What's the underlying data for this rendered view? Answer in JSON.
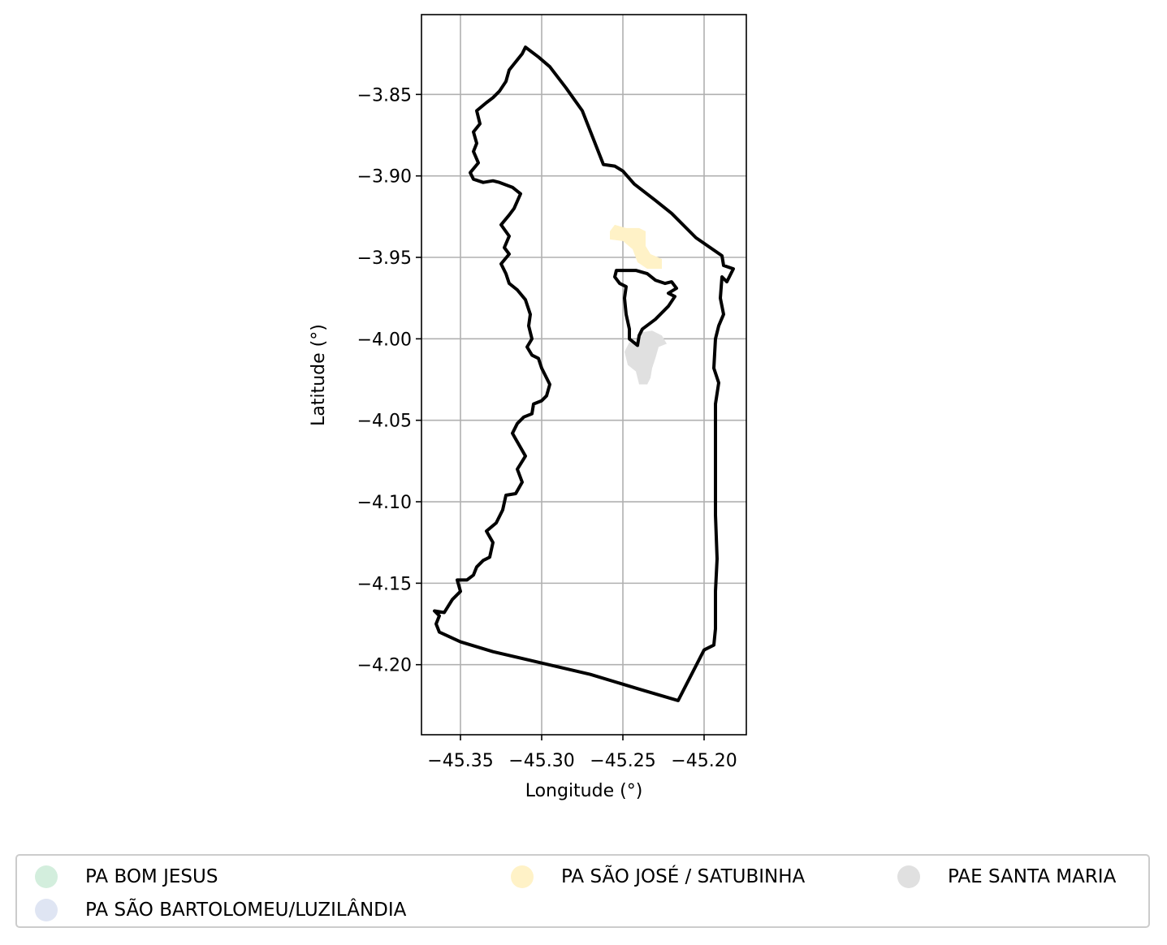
{
  "map": {
    "xlabel": "Longitude (°)",
    "ylabel": "Latitude (°)",
    "xlim": [
      -45.374,
      -45.174
    ],
    "ylim": [
      -4.243,
      -3.801
    ],
    "xticks": [
      -45.35,
      -45.3,
      -45.25,
      -45.2
    ],
    "xtick_labels": [
      "−45.35",
      "−45.30",
      "−45.25",
      "−45.20"
    ],
    "yticks": [
      -3.85,
      -3.9,
      -3.95,
      -4.0,
      -4.05,
      -4.1,
      -4.15,
      -4.2
    ],
    "ytick_labels": [
      "−3.85",
      "−3.90",
      "−3.95",
      "−4.00",
      "−4.05",
      "−4.10",
      "−4.15",
      "−4.20"
    ],
    "grid": true,
    "boundary_color": "#000000",
    "boundary": [
      [
        -45.31,
        -3.821
      ],
      [
        -45.302,
        -3.827
      ],
      [
        -45.295,
        -3.833
      ],
      [
        -45.285,
        -3.846
      ],
      [
        -45.275,
        -3.86
      ],
      [
        -45.262,
        -3.893
      ],
      [
        -45.255,
        -3.894
      ],
      [
        -45.25,
        -3.897
      ],
      [
        -45.243,
        -3.905
      ],
      [
        -45.23,
        -3.915
      ],
      [
        -45.22,
        -3.923
      ],
      [
        -45.205,
        -3.938
      ],
      [
        -45.189,
        -3.949
      ],
      [
        -45.188,
        -3.955
      ],
      [
        -45.182,
        -3.957
      ],
      [
        -45.186,
        -3.965
      ],
      [
        -45.189,
        -3.962
      ],
      [
        -45.19,
        -3.975
      ],
      [
        -45.188,
        -3.985
      ],
      [
        -45.191,
        -3.992
      ],
      [
        -45.193,
        -4.0
      ],
      [
        -45.194,
        -4.018
      ],
      [
        -45.191,
        -4.027
      ],
      [
        -45.193,
        -4.04
      ],
      [
        -45.193,
        -4.09
      ],
      [
        -45.193,
        -4.108
      ],
      [
        -45.192,
        -4.135
      ],
      [
        -45.193,
        -4.155
      ],
      [
        -45.193,
        -4.178
      ],
      [
        -45.194,
        -4.188
      ],
      [
        -45.2,
        -4.191
      ],
      [
        -45.216,
        -4.222
      ],
      [
        -45.24,
        -4.215
      ],
      [
        -45.27,
        -4.206
      ],
      [
        -45.3,
        -4.199
      ],
      [
        -45.33,
        -4.192
      ],
      [
        -45.35,
        -4.186
      ],
      [
        -45.363,
        -4.18
      ],
      [
        -45.365,
        -4.175
      ],
      [
        -45.363,
        -4.17
      ],
      [
        -45.366,
        -4.167
      ],
      [
        -45.36,
        -4.168
      ],
      [
        -45.355,
        -4.16
      ],
      [
        -45.35,
        -4.155
      ],
      [
        -45.352,
        -4.148
      ],
      [
        -45.346,
        -4.148
      ],
      [
        -45.342,
        -4.145
      ],
      [
        -45.34,
        -4.14
      ],
      [
        -45.336,
        -4.136
      ],
      [
        -45.332,
        -4.134
      ],
      [
        -45.33,
        -4.125
      ],
      [
        -45.334,
        -4.118
      ],
      [
        -45.328,
        -4.113
      ],
      [
        -45.324,
        -4.105
      ],
      [
        -45.322,
        -4.096
      ],
      [
        -45.316,
        -4.095
      ],
      [
        -45.312,
        -4.088
      ],
      [
        -45.315,
        -4.08
      ],
      [
        -45.31,
        -4.072
      ],
      [
        -45.314,
        -4.065
      ],
      [
        -45.318,
        -4.058
      ],
      [
        -45.315,
        -4.052
      ],
      [
        -45.311,
        -4.048
      ],
      [
        -45.306,
        -4.046
      ],
      [
        -45.305,
        -4.04
      ],
      [
        -45.3,
        -4.038
      ],
      [
        -45.297,
        -4.035
      ],
      [
        -45.295,
        -4.028
      ],
      [
        -45.298,
        -4.022
      ],
      [
        -45.3,
        -4.018
      ],
      [
        -45.302,
        -4.012
      ],
      [
        -45.306,
        -4.01
      ],
      [
        -45.309,
        -4.005
      ],
      [
        -45.306,
        -4.0
      ],
      [
        -45.308,
        -3.992
      ],
      [
        -45.307,
        -3.985
      ],
      [
        -45.31,
        -3.976
      ],
      [
        -45.315,
        -3.97
      ],
      [
        -45.32,
        -3.966
      ],
      [
        -45.322,
        -3.96
      ],
      [
        -45.325,
        -3.954
      ],
      [
        -45.32,
        -3.948
      ],
      [
        -45.323,
        -3.944
      ],
      [
        -45.32,
        -3.937
      ],
      [
        -45.325,
        -3.93
      ],
      [
        -45.32,
        -3.924
      ],
      [
        -45.317,
        -3.92
      ],
      [
        -45.313,
        -3.911
      ],
      [
        -45.318,
        -3.907
      ],
      [
        -45.326,
        -3.904
      ],
      [
        -45.33,
        -3.903
      ],
      [
        -45.336,
        -3.904
      ],
      [
        -45.342,
        -3.902
      ],
      [
        -45.344,
        -3.898
      ],
      [
        -45.339,
        -3.892
      ],
      [
        -45.342,
        -3.885
      ],
      [
        -45.34,
        -3.88
      ],
      [
        -45.342,
        -3.873
      ],
      [
        -45.338,
        -3.868
      ],
      [
        -45.34,
        -3.86
      ],
      [
        -45.334,
        -3.855
      ],
      [
        -45.33,
        -3.852
      ],
      [
        -45.326,
        -3.848
      ],
      [
        -45.322,
        -3.842
      ],
      [
        -45.32,
        -3.835
      ],
      [
        -45.316,
        -3.83
      ],
      [
        -45.312,
        -3.825
      ],
      [
        -45.31,
        -3.821
      ]
    ],
    "hole": [
      [
        -45.254,
        -3.958
      ],
      [
        -45.242,
        -3.958
      ],
      [
        -45.235,
        -3.96
      ],
      [
        -45.23,
        -3.964
      ],
      [
        -45.224,
        -3.966
      ],
      [
        -45.22,
        -3.965
      ],
      [
        -45.217,
        -3.969
      ],
      [
        -45.222,
        -3.972
      ],
      [
        -45.218,
        -3.974
      ],
      [
        -45.222,
        -3.98
      ],
      [
        -45.23,
        -3.988
      ],
      [
        -45.238,
        -3.994
      ],
      [
        -45.24,
        -3.998
      ],
      [
        -45.241,
        -4.004
      ],
      [
        -45.246,
        -4.0
      ],
      [
        -45.246,
        -3.994
      ],
      [
        -45.248,
        -3.985
      ],
      [
        -45.249,
        -3.975
      ],
      [
        -45.248,
        -3.968
      ],
      [
        -45.252,
        -3.966
      ],
      [
        -45.255,
        -3.962
      ],
      [
        -45.254,
        -3.958
      ]
    ],
    "regions": [
      {
        "name": "PA SÃO JOSÉ / SATUBINHA",
        "color": "#fff2c7",
        "polygon": [
          [
            -45.255,
            -3.93
          ],
          [
            -45.248,
            -3.932
          ],
          [
            -45.24,
            -3.932
          ],
          [
            -45.236,
            -3.934
          ],
          [
            -45.236,
            -3.943
          ],
          [
            -45.233,
            -3.948
          ],
          [
            -45.226,
            -3.951
          ],
          [
            -45.226,
            -3.957
          ],
          [
            -45.235,
            -3.957
          ],
          [
            -45.241,
            -3.953
          ],
          [
            -45.244,
            -3.945
          ],
          [
            -45.25,
            -3.94
          ],
          [
            -45.258,
            -3.939
          ],
          [
            -45.258,
            -3.934
          ]
        ]
      },
      {
        "name": "PAE SANTA MARIA",
        "color": "#e0e0e0",
        "polygon": [
          [
            -45.238,
            -3.996
          ],
          [
            -45.232,
            -3.995
          ],
          [
            -45.226,
            -3.998
          ],
          [
            -45.223,
            -4.003
          ],
          [
            -45.228,
            -4.005
          ],
          [
            -45.23,
            -4.012
          ],
          [
            -45.232,
            -4.018
          ],
          [
            -45.233,
            -4.024
          ],
          [
            -45.235,
            -4.028
          ],
          [
            -45.24,
            -4.028
          ],
          [
            -45.242,
            -4.02
          ],
          [
            -45.247,
            -4.016
          ],
          [
            -45.249,
            -4.008
          ],
          [
            -45.246,
            -4.002
          ],
          [
            -45.241,
            -4.004
          ],
          [
            -45.24,
            -3.998
          ]
        ]
      }
    ]
  },
  "legend": {
    "items": [
      {
        "label": "PA BOM JESUS",
        "color": "#d3eedd"
      },
      {
        "label": "PA SÃO BARTOLOMEU/LUZILÂNDIA",
        "color": "#dfe5f3"
      },
      {
        "label": "PA SÃO JOSÉ / SATUBINHA",
        "color": "#fff2c7"
      },
      {
        "label": "PAE SANTA MARIA",
        "color": "#e0e0e0"
      }
    ]
  }
}
